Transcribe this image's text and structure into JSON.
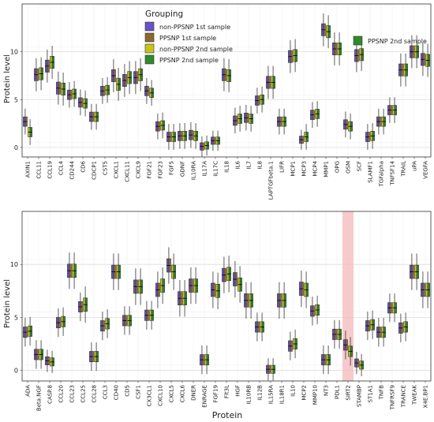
{
  "legend_title": "Grouping",
  "legend_items": [
    {
      "key": "nonPpsnp1",
      "label": "non-PPSNP 1st sample"
    },
    {
      "key": "ppsnp1",
      "label": "PPSNP 1st sample"
    },
    {
      "key": "nonPpsnp2",
      "label": "non-PPSNP 2nd sample"
    },
    {
      "key": "ppsnp2",
      "label": "PPSNP 2nd sample"
    }
  ],
  "colors": {
    "nonPpsnp1": "#6a52c7",
    "ppsnp1": "#8a6a2c",
    "nonPpsnp2": "#c9c31c",
    "ppsnp2": "#2f8a2a",
    "highlight": "#f4b9b9",
    "highlight_label": "#c0392b"
  },
  "chart_data": [
    {
      "type": "box",
      "panel": "top",
      "xlabel": "",
      "ylabel": "Protein level",
      "ylim": [
        -1,
        15
      ],
      "yticks": [
        0,
        5,
        10
      ],
      "grid": true,
      "legend_position": "top-left",
      "extra_legend": "PPSNP 2nd sample",
      "categories": [
        "AXIN1",
        "CCL11",
        "CCL19",
        "CCL4",
        "CD244",
        "CD6",
        "CDCP1",
        "CST5",
        "CXCL1",
        "CXCL11",
        "CXCL9",
        "FGF21",
        "FGF23",
        "FGF5",
        "GDNF",
        "IL10RA",
        "IL17A",
        "IL17C",
        "IL18",
        "IL6",
        "IL7",
        "IL8",
        "LAPTGFbeta.1",
        "LIFR",
        "MCP1",
        "MCP3",
        "MCP4",
        "MMP1",
        "OPG",
        "OSM",
        "SCF",
        "SLAMF1",
        "TGFalpha",
        "TNFSF14",
        "TRAIL",
        "uPA",
        "VEGFA"
      ],
      "medians": [
        [
          2.7,
          1.6
        ],
        [
          7.6,
          7.7
        ],
        [
          8.5,
          8.9
        ],
        [
          6.2,
          6.1
        ],
        [
          5.5,
          5.6
        ],
        [
          4.7,
          4.6
        ],
        [
          3.2,
          3.2
        ],
        [
          5.9,
          6.0
        ],
        [
          7.5,
          6.6
        ],
        [
          7.0,
          7.3
        ],
        [
          7.3,
          7.6
        ],
        [
          5.9,
          5.7
        ],
        [
          2.2,
          2.3
        ],
        [
          1.1,
          1.1
        ],
        [
          1.2,
          1.2
        ],
        [
          1.3,
          1.2
        ],
        [
          0.1,
          0.2
        ],
        [
          0.7,
          0.7
        ],
        [
          7.6,
          7.5
        ],
        [
          2.8,
          3.0
        ],
        [
          3.1,
          3.0
        ],
        [
          4.9,
          5.0
        ],
        [
          6.8,
          6.8
        ],
        [
          2.7,
          2.7
        ],
        [
          9.5,
          9.6
        ],
        [
          0.8,
          1.1
        ],
        [
          3.4,
          3.5
        ],
        [
          12.3,
          12.1
        ],
        [
          10.3,
          10.3
        ],
        [
          2.4,
          2.2
        ],
        [
          9.6,
          9.7
        ],
        [
          1.1,
          1.2
        ],
        [
          2.7,
          2.7
        ],
        [
          3.9,
          3.9
        ],
        [
          8.1,
          8.1
        ],
        [
          10.0,
          10.0
        ],
        [
          9.2,
          9.1
        ]
      ]
    },
    {
      "type": "box",
      "panel": "bottom",
      "xlabel": "Protein",
      "ylabel": "Protein level",
      "ylim": [
        -1,
        15
      ],
      "yticks": [
        0,
        5,
        10
      ],
      "grid": true,
      "highlight_category": "SIRT2",
      "categories": [
        "ADA",
        "Beta.NGF",
        "CASP.8",
        "CCL20",
        "CCL23",
        "CCL25",
        "CCL28",
        "CCL3",
        "CD40",
        "CD5",
        "CSF1",
        "CX3CL1",
        "CXCL10",
        "CXCL5",
        "CXCL6",
        "DNER",
        "ENRAGE",
        "FGF19",
        "Flt3L",
        "HGF",
        "IL10RB",
        "IL12B",
        "IL15RA",
        "IL18R1",
        "IL10",
        "MCP2",
        "MMP10",
        "NT3",
        "PDL1",
        "SIRT2",
        "STAMBP",
        "ST1A1",
        "TNFB",
        "TNFRSF9",
        "TRANCE",
        "TWEAK",
        "X4E.BP1"
      ],
      "medians": [
        [
          3.6,
          3.7
        ],
        [
          1.5,
          1.5
        ],
        [
          0.9,
          0.8
        ],
        [
          4.5,
          4.6
        ],
        [
          9.4,
          9.4
        ],
        [
          6.0,
          6.2
        ],
        [
          1.3,
          1.3
        ],
        [
          4.2,
          4.4
        ],
        [
          9.3,
          9.3
        ],
        [
          4.7,
          4.7
        ],
        [
          7.9,
          7.9
        ],
        [
          5.2,
          5.2
        ],
        [
          7.6,
          8.0
        ],
        [
          9.9,
          9.3
        ],
        [
          6.8,
          6.8
        ],
        [
          8.0,
          8.0
        ],
        [
          1.0,
          1.0
        ],
        [
          7.6,
          7.5
        ],
        [
          9.0,
          9.1
        ],
        [
          8.6,
          8.1
        ],
        [
          6.6,
          6.6
        ],
        [
          4.1,
          4.1
        ],
        [
          0.1,
          0.1
        ],
        [
          6.6,
          6.6
        ],
        [
          2.3,
          2.5
        ],
        [
          7.7,
          7.6
        ],
        [
          5.6,
          5.7
        ],
        [
          1.0,
          1.0
        ],
        [
          3.4,
          3.4
        ],
        [
          2.4,
          1.8
        ],
        [
          0.7,
          0.5
        ],
        [
          4.2,
          4.3
        ],
        [
          3.6,
          3.6
        ],
        [
          5.9,
          5.9
        ],
        [
          4.0,
          4.1
        ],
        [
          9.3,
          9.3
        ],
        [
          7.6,
          7.6
        ]
      ]
    }
  ]
}
